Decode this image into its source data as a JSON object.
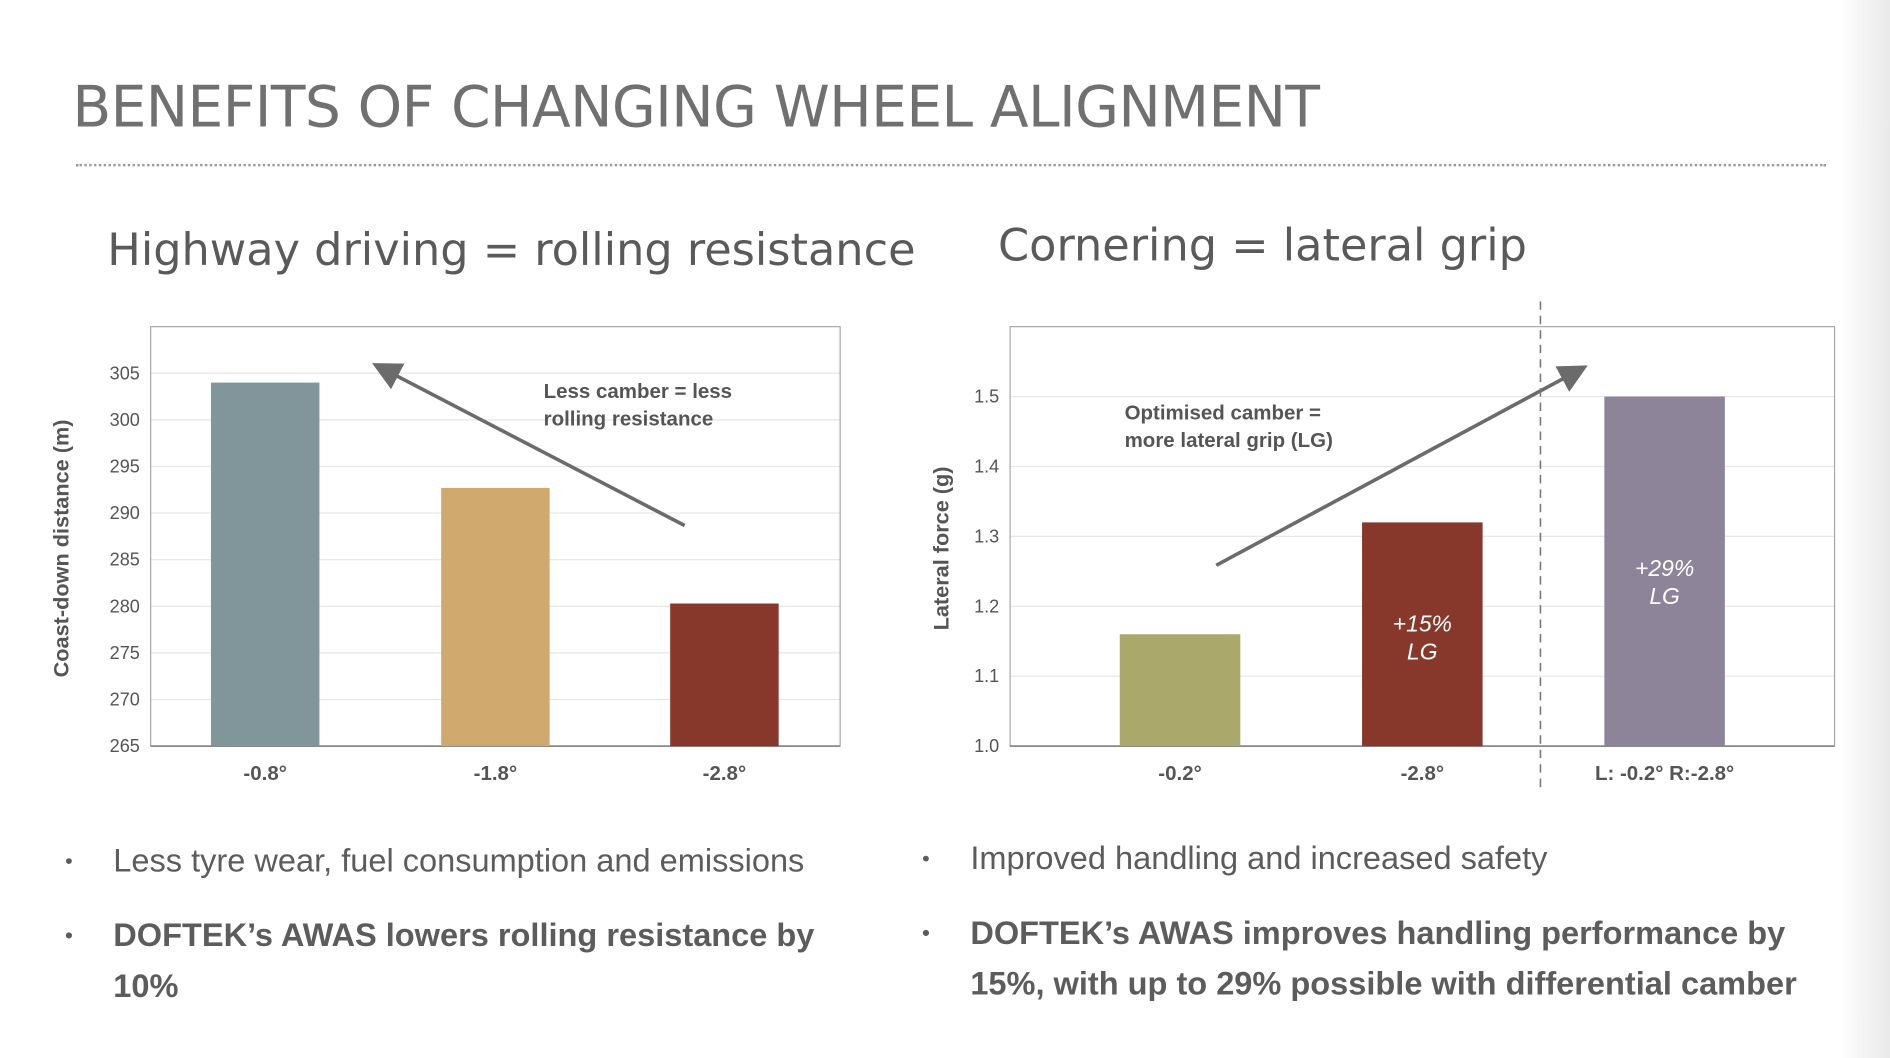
{
  "title": "BENEFITS OF CHANGING WHEEL ALIGNMENT",
  "left": {
    "subtitle": "Highway driving = rolling resistance",
    "bullets": [
      "Less tyre wear, fuel consumption and emissions",
      "DOFTEK’s AWAS lowers rolling resistance by 10%"
    ]
  },
  "right": {
    "subtitle": "Cornering = lateral grip",
    "bullets": [
      "Improved handling and increased safety",
      "DOFTEK’s AWAS improves handling performance by 15%, with up to 29% possible with differential camber"
    ]
  },
  "chart_data": [
    {
      "type": "bar",
      "categories": [
        "-0.8°",
        "-1.8°",
        "-2.8°"
      ],
      "values": [
        304,
        292.7,
        280.3
      ],
      "colors": [
        "#80969b",
        "#cfa96d",
        "#88382a"
      ],
      "ylabel": "Coast-down distance (m)",
      "xlabel": "",
      "ylim": [
        265,
        310
      ],
      "yticks": [
        265,
        270,
        275,
        280,
        285,
        290,
        295,
        300,
        305
      ],
      "grid": true,
      "annotation": [
        "Less camber = less",
        "rolling resistance"
      ],
      "bar_labels": [
        [],
        [],
        []
      ]
    },
    {
      "type": "bar",
      "categories": [
        "-0.2°",
        "-2.8°",
        "L: -0.2° R:-2.8°"
      ],
      "values": [
        1.16,
        1.32,
        1.5
      ],
      "colors": [
        "#aaa96b",
        "#88382a",
        "#8d8499"
      ],
      "ylabel": "Lateral force (g)",
      "xlabel": "",
      "ylim": [
        1.0,
        1.6
      ],
      "yticks": [
        "1.0",
        "1.1",
        "1.2",
        "1.3",
        "1.4",
        "1.5"
      ],
      "grid": true,
      "annotation": [
        "Optimised camber =",
        "more lateral grip (LG)"
      ],
      "bar_labels": [
        [],
        [
          "+15%",
          "LG"
        ],
        [
          "+29%",
          "LG"
        ]
      ]
    }
  ]
}
